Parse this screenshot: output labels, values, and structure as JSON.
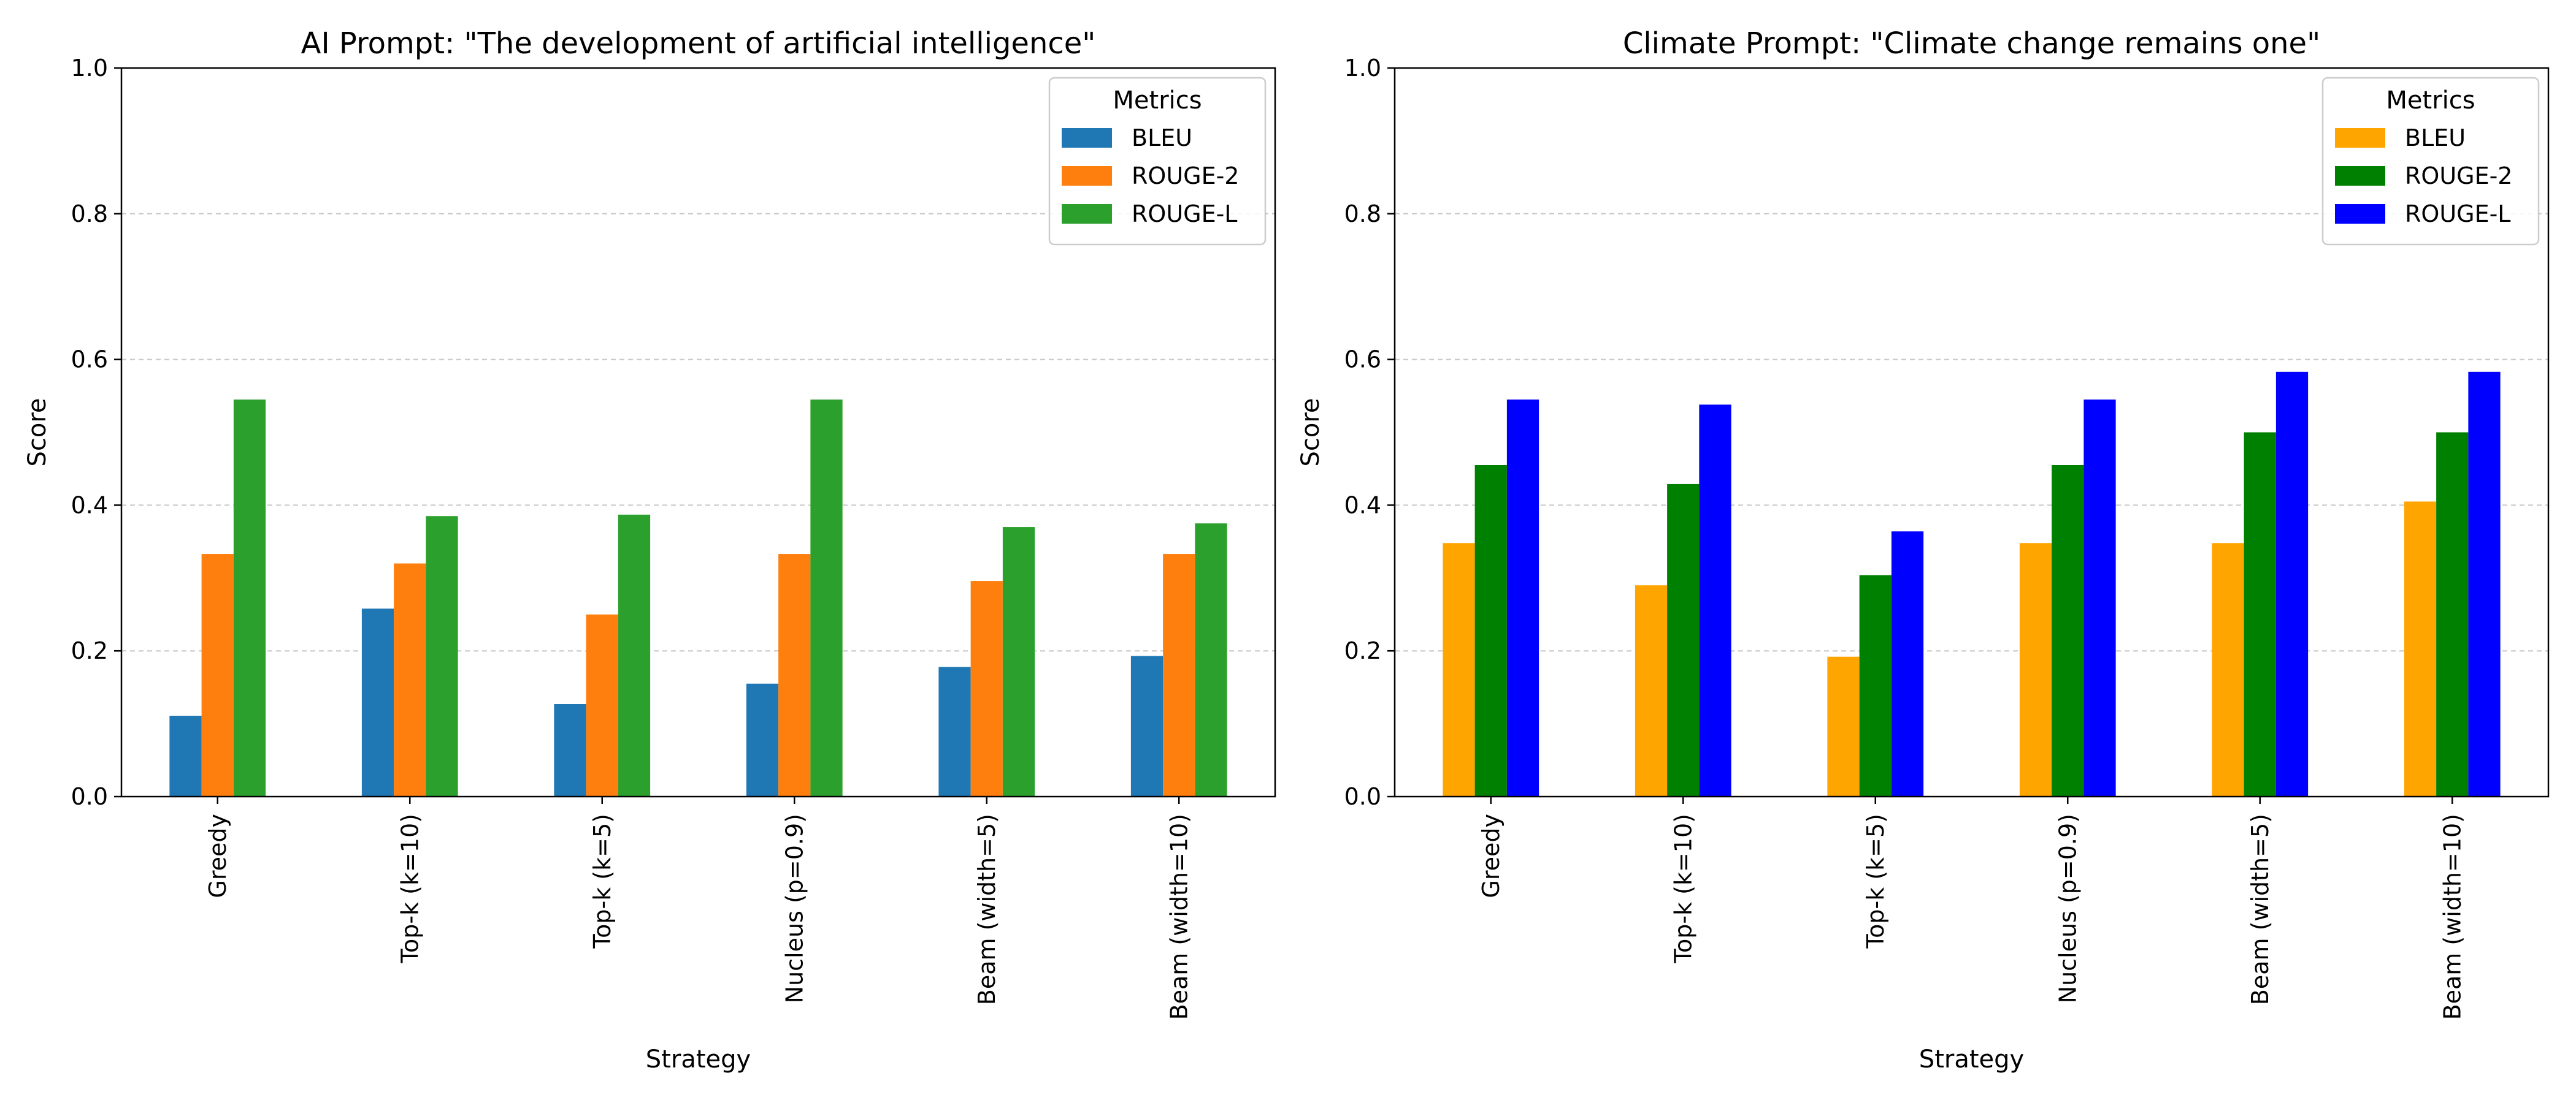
{
  "chart_data": [
    {
      "type": "bar",
      "title": "AI Prompt: \"The development of artificial intelligence\"",
      "xlabel": "Strategy",
      "ylabel": "Score",
      "ylim": [
        0,
        1.0
      ],
      "yticks": [
        "0.0",
        "0.2",
        "0.4",
        "0.6",
        "0.8",
        "1.0"
      ],
      "grid": "y-dashed",
      "legend": {
        "title": "Metrics",
        "placement": "top-right"
      },
      "categories": [
        "Greedy",
        "Top-k (k=10)",
        "Top-k (k=5)",
        "Nucleus (p=0.9)",
        "Beam (width=5)",
        "Beam (width=10)"
      ],
      "series": [
        {
          "name": "BLEU",
          "color": "#1f77b4",
          "values": [
            0.111,
            0.258,
            0.127,
            0.155,
            0.178,
            0.193
          ]
        },
        {
          "name": "ROUGE-2",
          "color": "#ff7f0e",
          "values": [
            0.333,
            0.32,
            0.25,
            0.333,
            0.296,
            0.333
          ]
        },
        {
          "name": "ROUGE-L",
          "color": "#2ca02c",
          "values": [
            0.545,
            0.385,
            0.387,
            0.545,
            0.37,
            0.375
          ]
        }
      ]
    },
    {
      "type": "bar",
      "title": "Climate Prompt: \"Climate change remains one\"",
      "xlabel": "Strategy",
      "ylabel": "Score",
      "ylim": [
        0,
        1.0
      ],
      "yticks": [
        "0.0",
        "0.2",
        "0.4",
        "0.6",
        "0.8",
        "1.0"
      ],
      "grid": "y-dashed",
      "legend": {
        "title": "Metrics",
        "placement": "top-right"
      },
      "categories": [
        "Greedy",
        "Top-k (k=10)",
        "Top-k (k=5)",
        "Nucleus (p=0.9)",
        "Beam (width=5)",
        "Beam (width=10)"
      ],
      "series": [
        {
          "name": "BLEU",
          "color": "#ffa500",
          "values": [
            0.348,
            0.29,
            0.192,
            0.348,
            0.348,
            0.405
          ]
        },
        {
          "name": "ROUGE-2",
          "color": "#008000",
          "values": [
            0.455,
            0.429,
            0.304,
            0.455,
            0.5,
            0.5
          ]
        },
        {
          "name": "ROUGE-L",
          "color": "#0000ff",
          "values": [
            0.545,
            0.538,
            0.364,
            0.545,
            0.583,
            0.583
          ]
        }
      ]
    }
  ]
}
